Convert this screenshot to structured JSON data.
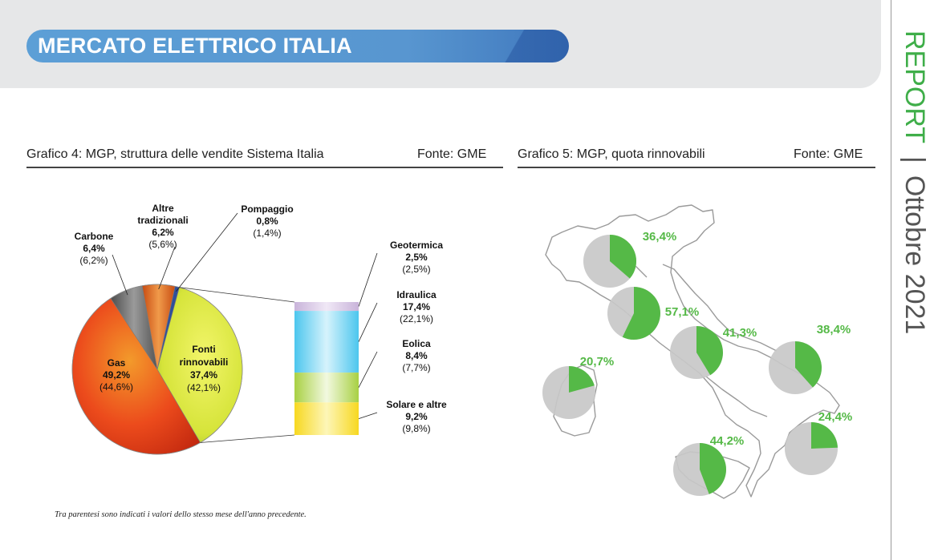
{
  "header": {
    "title": "MERCATO ELETTRICO ITALIA"
  },
  "sidebar": {
    "report": "REPORT",
    "separator": "|",
    "month": "Ottobre 2021"
  },
  "chart4": {
    "caption": "Grafico 4: MGP, struttura delle vendite Sistema Italia",
    "source": "Fonte: GME"
  },
  "chart5": {
    "caption": "Grafico 5: MGP, quota rinnovabili",
    "source": "Fonte: GME"
  },
  "footnote": "Tra parentesi sono indicati i valori dello stesso mese dell'anno precedente.",
  "chart_data": [
    {
      "type": "pie",
      "title": "Grafico 4: MGP, struttura delle vendite Sistema Italia",
      "slices": [
        {
          "name": "Fonti rinnovabili",
          "value": 37.4,
          "previous": 42.1,
          "label": "37,4%",
          "prev_label": "(42,1%)",
          "label_lines": [
            "Fonti",
            "rinnovabili"
          ],
          "color": "#d6e43a"
        },
        {
          "name": "Gas",
          "value": 49.2,
          "previous": 44.6,
          "label": "49,2%",
          "prev_label": "(44,6%)",
          "label_lines": [
            "Gas"
          ],
          "color": "#ec4b1c"
        },
        {
          "name": "Carbone",
          "value": 6.4,
          "previous": 6.2,
          "label": "6,4%",
          "prev_label": "(6,2%)",
          "label_lines": [
            "Carbone"
          ],
          "color": "#6e6e6e"
        },
        {
          "name": "Altre tradizionali",
          "value": 6.2,
          "previous": 5.6,
          "label": "6,2%",
          "prev_label": "(5,6%)",
          "label_lines": [
            "Altre",
            "tradizionali"
          ],
          "color": "#e36f23"
        },
        {
          "name": "Pompaggio",
          "value": 0.8,
          "previous": 1.4,
          "label": "0,8%",
          "prev_label": "(1,4%)",
          "label_lines": [
            "Pompaggio"
          ],
          "color": "#2f4f9a"
        }
      ],
      "breakdown": {
        "of": "Fonti rinnovabili",
        "segments": [
          {
            "name": "Geotermica",
            "value": 2.5,
            "previous": 2.5,
            "label": "2,5%",
            "prev_label": "(2,5%)",
            "color": "#d9c7e6"
          },
          {
            "name": "Idraulica",
            "value": 17.4,
            "previous": 22.1,
            "label": "17,4%",
            "prev_label": "(22,1%)",
            "color": "#6fd3f0"
          },
          {
            "name": "Eolica",
            "value": 8.4,
            "previous": 7.7,
            "label": "8,4%",
            "prev_label": "(7,7%)",
            "color": "#b7d95a"
          },
          {
            "name": "Solare e altre",
            "value": 9.2,
            "previous": 9.8,
            "label": "9,2%",
            "prev_label": "(9,8%)",
            "color": "#f9e24a"
          }
        ]
      }
    },
    {
      "type": "pie",
      "title": "Grafico 5: MGP, quota rinnovabili",
      "series_color": "#55b947",
      "rest_color": "#c8c8c8",
      "zones": [
        {
          "value": 36.4,
          "label": "36,4%"
        },
        {
          "value": 57.1,
          "label": "57,1%"
        },
        {
          "value": 41.3,
          "label": "41,3%"
        },
        {
          "value": 38.4,
          "label": "38,4%"
        },
        {
          "value": 20.7,
          "label": "20,7%"
        },
        {
          "value": 24.4,
          "label": "24,4%"
        },
        {
          "value": 44.2,
          "label": "44,2%"
        }
      ]
    }
  ]
}
